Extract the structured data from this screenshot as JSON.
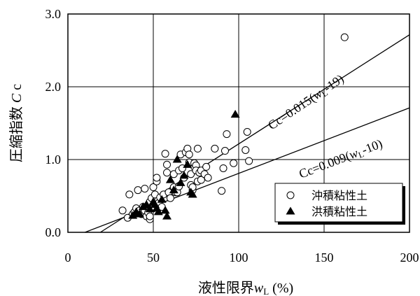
{
  "chart_data": {
    "type": "scatter",
    "title": "",
    "xlabel": "液性限界wL (%)",
    "ylabel": "圧縮指数 Cc",
    "xlabel_parts": {
      "main": "液性限界",
      "var": "w",
      "sub": "L",
      "unit": " (%)"
    },
    "ylabel_parts": {
      "main": "圧縮指数 ",
      "var": "C",
      "tail": " c"
    },
    "xlim": [
      0,
      200
    ],
    "ylim": [
      0,
      3.0
    ],
    "xticks": [
      0,
      50,
      100,
      150,
      200
    ],
    "xtick_labels": [
      "0",
      "50",
      "100",
      "150",
      "200"
    ],
    "yticks": [
      0,
      1.0,
      2.0,
      3.0
    ],
    "ytick_labels": [
      "0.0",
      "1.0",
      "2.0",
      "3.0"
    ],
    "grid": true,
    "legend": "bottom-right",
    "series": [
      {
        "name": "沖積粘性土",
        "marker": "circle-open",
        "points": [
          [
            32,
            0.3
          ],
          [
            35,
            0.2
          ],
          [
            36,
            0.52
          ],
          [
            38,
            0.25
          ],
          [
            39,
            0.28
          ],
          [
            40,
            0.33
          ],
          [
            41,
            0.58
          ],
          [
            42,
            0.3
          ],
          [
            43,
            0.25
          ],
          [
            44,
            0.35
          ],
          [
            45,
            0.6
          ],
          [
            45,
            0.3
          ],
          [
            46,
            0.22
          ],
          [
            47,
            0.38
          ],
          [
            47,
            0.27
          ],
          [
            48,
            0.42
          ],
          [
            48,
            0.18
          ],
          [
            48,
            0.22
          ],
          [
            49,
            0.47
          ],
          [
            50,
            0.62
          ],
          [
            50,
            0.33
          ],
          [
            51,
            0.52
          ],
          [
            52,
            0.7
          ],
          [
            52,
            0.75
          ],
          [
            53,
            0.4
          ],
          [
            54,
            0.48
          ],
          [
            55,
            0.35
          ],
          [
            56,
            0.52
          ],
          [
            57,
            1.08
          ],
          [
            58,
            0.93
          ],
          [
            58,
            0.82
          ],
          [
            59,
            0.55
          ],
          [
            60,
            0.47
          ],
          [
            62,
            0.8
          ],
          [
            62,
            0.62
          ],
          [
            63,
            0.55
          ],
          [
            64,
            0.55
          ],
          [
            65,
            0.85
          ],
          [
            65,
            0.63
          ],
          [
            66,
            1.07
          ],
          [
            67,
            0.88
          ],
          [
            68,
            0.75
          ],
          [
            69,
            1.1
          ],
          [
            70,
            1.15
          ],
          [
            71,
            1.07
          ],
          [
            71,
            0.96
          ],
          [
            72,
            0.8
          ],
          [
            72,
            0.65
          ],
          [
            73,
            0.58
          ],
          [
            73,
            0.62
          ],
          [
            74,
            0.9
          ],
          [
            74,
            0.95
          ],
          [
            75,
            0.92
          ],
          [
            75,
            0.85
          ],
          [
            76,
            0.7
          ],
          [
            76,
            1.15
          ],
          [
            77,
            0.82
          ],
          [
            78,
            0.85
          ],
          [
            78,
            0.72
          ],
          [
            80,
            0.8
          ],
          [
            81,
            0.9
          ],
          [
            82,
            0.75
          ],
          [
            86,
            1.15
          ],
          [
            90,
            0.57
          ],
          [
            91,
            0.88
          ],
          [
            92,
            1.12
          ],
          [
            93,
            1.35
          ],
          [
            97,
            0.95
          ],
          [
            104,
            1.13
          ],
          [
            105,
            1.38
          ],
          [
            106,
            0.98
          ],
          [
            162,
            2.68
          ]
        ]
      },
      {
        "name": "洪積粘性土",
        "marker": "triangle-filled",
        "points": [
          [
            38,
            0.23
          ],
          [
            40,
            0.28
          ],
          [
            42,
            0.25
          ],
          [
            44,
            0.35
          ],
          [
            46,
            0.38
          ],
          [
            48,
            0.32
          ],
          [
            50,
            0.42
          ],
          [
            51,
            0.38
          ],
          [
            52,
            0.33
          ],
          [
            53,
            0.28
          ],
          [
            55,
            0.45
          ],
          [
            57,
            0.3
          ],
          [
            58,
            0.22
          ],
          [
            60,
            0.72
          ],
          [
            62,
            0.58
          ],
          [
            64,
            1.0
          ],
          [
            66,
            0.68
          ],
          [
            68,
            0.78
          ],
          [
            70,
            0.93
          ],
          [
            72,
            0.55
          ],
          [
            73,
            0.52
          ],
          [
            98,
            1.62
          ]
        ]
      }
    ],
    "regression_lines": [
      {
        "label_prefix": "Cc=0.015(",
        "var": "w",
        "sub": "L",
        "label_suffix": "-19)",
        "slope": 0.015,
        "offset": 19
      },
      {
        "label_prefix": "Cc=0.009(",
        "var": "w",
        "sub": "L",
        "label_suffix": "-10)",
        "slope": 0.009,
        "offset": 10
      }
    ]
  }
}
